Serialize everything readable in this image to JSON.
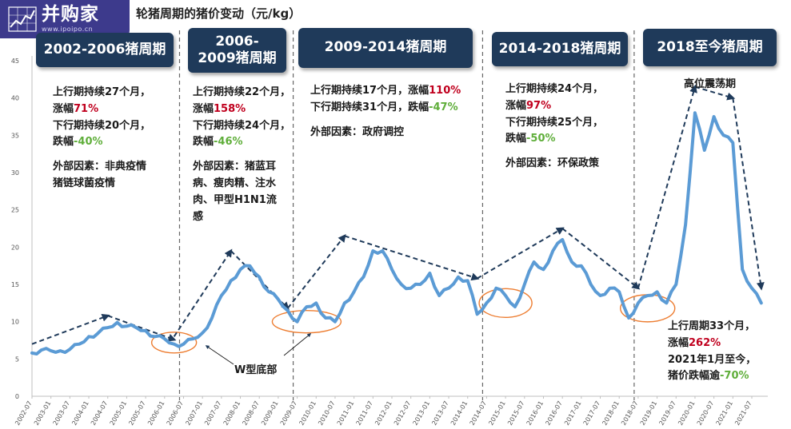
{
  "title": "轮猪周期的猪价变动（元/kg）",
  "logo": {
    "name": "并购家",
    "url": "www.ipoipo.cn"
  },
  "periods": [
    {
      "label": "2002-2006猪周期"
    },
    {
      "label": "2006-2009猪周期"
    },
    {
      "label": "2009-2014猪周期"
    },
    {
      "label": "2014-2018猪周期"
    },
    {
      "label": "2018至今猪周期"
    }
  ],
  "infos": {
    "p1": {
      "up": "上行期持续27个月，",
      "up_label": "涨幅",
      "up_val": "71%",
      "down": "下行期持续20个月，",
      "down_label": "跌幅",
      "down_val": "-40%",
      "ext1": "外部因素：非典疫情",
      "ext2": "猪链球菌疫情"
    },
    "p2": {
      "up": "上行期持续22个月，",
      "up_label": "涨幅",
      "up_val": "158%",
      "down": "下行期持续24个月，",
      "down_label": "跌幅",
      "down_val": "-46%",
      "ext1": "外部因素：猪蓝耳",
      "ext2": "病、瘦肉精、注水",
      "ext3": "肉、甲型H1N1流",
      "ext4": "感"
    },
    "p3": {
      "up": "上行期持续17个月，",
      "up_label": "涨幅",
      "up_val": "110%",
      "down": "下行期持续31个月，",
      "down_label": "跌幅",
      "down_val": "-47%",
      "ext1": "外部因素：政府调控"
    },
    "p4": {
      "up": "上行期持续24个月，",
      "up_label": "涨幅",
      "up_val": "97%",
      "down": "下行期持续25个月，",
      "down_label": "跌幅",
      "down_val": "-50%",
      "ext1": "外部因素：环保政策"
    },
    "p5": {
      "l1": "上行周期33个月，",
      "l2_label": "涨幅",
      "l2_val": "262%",
      "l3": "2021年1月至今，",
      "l4_label": "猪价跌幅逾",
      "l4_val": "-70%"
    }
  },
  "annotations": {
    "w_bottom": "W型底部",
    "high_oscillation": "高位震荡期"
  },
  "colors": {
    "line": "#5b9bd5",
    "box": "#1f3a5a",
    "circle": "#ed7d31",
    "arrow": "#1f3a5a",
    "red": "#c0001e",
    "green": "#5fae3a"
  },
  "chart_data": {
    "type": "line",
    "title": "轮猪周期的猪价变动（元/kg）",
    "ylim": [
      0,
      45
    ],
    "yticks": [
      0,
      5,
      10,
      15,
      20,
      25,
      30,
      35,
      40,
      45
    ],
    "xticks": [
      "2002-07",
      "2003-01",
      "2003-07",
      "2004-01",
      "2004-07",
      "2005-01",
      "2005-07",
      "2006-01",
      "2006-07",
      "2007-01",
      "2007-07",
      "2008-01",
      "2008-07",
      "2009-01",
      "2009-07",
      "2010-01",
      "2010-07",
      "2011-01",
      "2011-07",
      "2012-01",
      "2012-07",
      "2013-01",
      "2013-07",
      "2014-01",
      "2014-07",
      "2015-01",
      "2015-07",
      "2016-01",
      "2016-07",
      "2017-01",
      "2017-07",
      "2018-01",
      "2018-07",
      "2019-01",
      "2019-07",
      "2020-01",
      "2020-07",
      "2021-01",
      "2021-07"
    ],
    "series": [
      {
        "x": [
          "2002-07",
          "2002-10",
          "2003-01",
          "2003-04",
          "2003-07",
          "2003-10",
          "2004-01",
          "2004-04",
          "2004-07",
          "2004-10",
          "2005-01",
          "2005-04",
          "2005-07",
          "2005-10",
          "2006-01",
          "2006-04",
          "2006-07",
          "2006-10",
          "2007-01",
          "2007-04",
          "2007-07",
          "2007-10",
          "2008-01",
          "2008-04",
          "2008-07",
          "2008-10",
          "2009-01",
          "2009-04",
          "2009-07",
          "2009-10",
          "2010-01",
          "2010-04",
          "2010-07",
          "2010-10",
          "2011-01",
          "2011-04",
          "2011-07",
          "2011-10",
          "2012-01",
          "2012-04",
          "2012-07",
          "2012-10",
          "2013-01",
          "2013-04",
          "2013-07",
          "2013-10",
          "2014-01",
          "2014-04",
          "2014-07",
          "2014-10",
          "2015-01",
          "2015-04",
          "2015-07",
          "2015-10",
          "2016-01",
          "2016-04",
          "2016-07",
          "2016-10",
          "2017-01",
          "2017-04",
          "2017-07",
          "2017-10",
          "2018-01",
          "2018-04",
          "2018-07",
          "2018-10",
          "2019-01",
          "2019-04",
          "2019-07",
          "2019-10",
          "2020-01",
          "2020-04",
          "2020-07",
          "2020-10",
          "2021-01",
          "2021-04",
          "2021-07",
          "2021-10"
        ],
        "values": [
          5.8,
          6.2,
          6.1,
          6.1,
          6.3,
          7.0,
          8.0,
          8.5,
          9.2,
          9.9,
          9.4,
          9.2,
          8.8,
          8.0,
          7.7,
          7.0,
          7.0,
          7.7,
          8.5,
          10.5,
          13.5,
          15.5,
          17.0,
          17.5,
          16.0,
          14.0,
          13.0,
          11.5,
          10.0,
          12.0,
          12.5,
          10.5,
          10.0,
          12.5,
          14.0,
          16.0,
          19.5,
          19.5,
          17.0,
          15.0,
          14.5,
          15.0,
          16.5,
          13.5,
          14.5,
          16.0,
          15.5,
          11.0,
          12.5,
          14.5,
          13.5,
          12.0,
          15.0,
          18.0,
          17.0,
          19.5,
          21.0,
          18.0,
          17.5,
          15.0,
          13.5,
          14.5,
          14.0,
          10.5,
          12.5,
          13.5,
          14.0,
          12.5,
          15.0,
          23.0,
          38.0,
          33.0,
          37.5,
          35.0,
          34.0,
          17.0,
          14.5,
          12.5
        ]
      }
    ]
  }
}
